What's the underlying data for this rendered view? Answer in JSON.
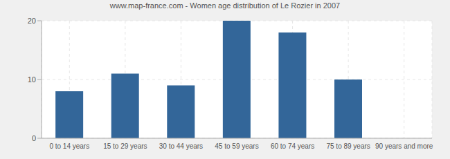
{
  "chart_data": {
    "type": "bar",
    "title": "www.map-france.com - Women age distribution of Le Rozier in 2007",
    "categories": [
      "0 to 14 years",
      "15 to 29 years",
      "30 to 44 years",
      "45 to 59 years",
      "60 to 74 years",
      "75 to 89 years",
      "90 years and more"
    ],
    "values": [
      8,
      11,
      9,
      20,
      18,
      10,
      0
    ],
    "color": "#336699",
    "ylim": [
      0,
      20
    ],
    "yticks": [
      0,
      10,
      20
    ],
    "grid": true
  }
}
